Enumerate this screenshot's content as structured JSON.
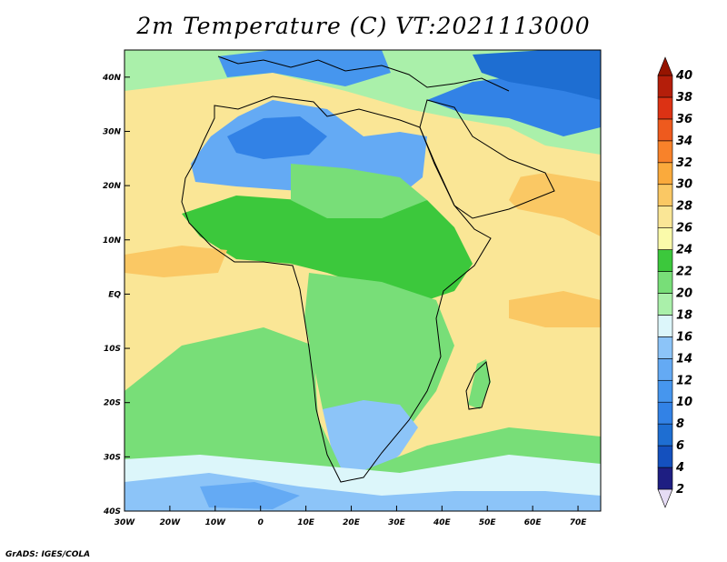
{
  "chart_data": {
    "type": "heatmap",
    "title": "2m Temperature (C) VT:2021113000",
    "x_ticks": [
      "30W",
      "20W",
      "10W",
      "0",
      "10E",
      "20E",
      "30E",
      "40E",
      "50E",
      "60E",
      "70E"
    ],
    "x_values": [
      -30,
      -20,
      -10,
      0,
      10,
      20,
      30,
      40,
      50,
      60,
      70
    ],
    "y_ticks": [
      "40N",
      "30N",
      "20N",
      "10N",
      "EQ",
      "10S",
      "20S",
      "30S",
      "40S"
    ],
    "y_values": [
      40,
      30,
      20,
      10,
      0,
      -10,
      -20,
      -30,
      -40
    ],
    "xlim": [
      -30,
      75
    ],
    "ylim": [
      -40,
      45
    ],
    "colorbar": {
      "levels": [
        "2",
        "4",
        "6",
        "8",
        "10",
        "12",
        "14",
        "16",
        "18",
        "20",
        "22",
        "24",
        "26",
        "28",
        "30",
        "32",
        "34",
        "36",
        "38",
        "40"
      ],
      "level_values": [
        2,
        4,
        6,
        8,
        10,
        12,
        14,
        16,
        18,
        20,
        22,
        24,
        26,
        28,
        30,
        32,
        34,
        36,
        38,
        40
      ],
      "colors": [
        "#e6dcf5",
        "#1e1e82",
        "#1450be",
        "#1e6ed2",
        "#3282e6",
        "#4696ee",
        "#64aaf4",
        "#8cc4f8",
        "#dcf6fa",
        "#aaf0aa",
        "#78de78",
        "#3cc83c",
        "#fafaaa",
        "#fae696",
        "#fac864",
        "#faaa3c",
        "#f8822a",
        "#ee5a1e",
        "#dc3214",
        "#b41e0a",
        "#961400"
      ],
      "min_arrow_color": "#e6dcf5",
      "max_arrow_color": "#961400"
    },
    "grid": false,
    "legend": "colorbar-right"
  },
  "footer": "GrADS: IGES/COLA"
}
